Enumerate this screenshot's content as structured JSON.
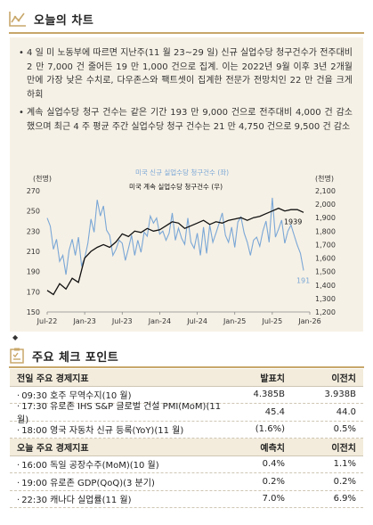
{
  "today_chart": {
    "title": "오늘의 차트",
    "bullets": [
      "4 일 미 노동부에 따르면 지난주(11 월 23~29 일) 신규 실업수당 청구건수가 전주대비 2 만 7,000 건 줄어든 19 만 1,000 건으로 집계. 이는 2022년 9월 이후 3년 2개월 만에 가장 낮은 수치로, 다우존스와 팩트셋이 집계한 전문가 전망치인 22 만 건을 크게 하회",
      "계속 실업수당 청구 건수는 같은 기간 193 만 9,000 건으로 전주대비 4,000 건 감소했으며 최근 4 주 평균 주간 실업수당 청구 건수는 21 만 4,750 건으로 9,500 건 감소"
    ]
  },
  "chart_data": {
    "type": "line",
    "left_unit": "(천명)",
    "right_unit": "(천명)",
    "x_ticks": [
      "Jul-22",
      "Jan-23",
      "Jul-23",
      "Jan-24",
      "Jul-24",
      "Jan-25",
      "Jul-25",
      "Jan-26"
    ],
    "left_ticks": [
      "270",
      "250",
      "230",
      "210",
      "190",
      "170",
      "150"
    ],
    "right_ticks": [
      "2,100",
      "2,000",
      "1,900",
      "1,800",
      "1,700",
      "1,600",
      "1,500",
      "1,400",
      "1,300",
      "1,200"
    ],
    "left_axis": {
      "min": 150,
      "max": 270
    },
    "right_axis": {
      "min": 1200,
      "max": 2100
    },
    "x_range": [
      0,
      42
    ],
    "series": [
      {
        "name": "미국 신규 실업수당 청구건수 (좌)",
        "axis": "left",
        "color": "#7aa7d6",
        "x": [
          0,
          0.5,
          1,
          1.5,
          2,
          2.5,
          3,
          3.5,
          4,
          4.5,
          5,
          5.5,
          6,
          6.5,
          7,
          7.5,
          8,
          8.5,
          9,
          9.5,
          10,
          10.5,
          11,
          11.5,
          12,
          12.5,
          13,
          13.5,
          14,
          14.5,
          15,
          15.5,
          16,
          16.5,
          17,
          17.5,
          18,
          18.5,
          19,
          19.5,
          20,
          20.5,
          21,
          21.5,
          22,
          22.5,
          23,
          23.5,
          24,
          24.5,
          25,
          25.5,
          26,
          26.5,
          27,
          27.5,
          28,
          28.5,
          29,
          29.5,
          30,
          30.5,
          31,
          31.5,
          32,
          32.5,
          33,
          33.5,
          34,
          34.5,
          35,
          35.5,
          36,
          36.5,
          37,
          37.5,
          38,
          38.5,
          39,
          39.5,
          40,
          40.5,
          41
        ],
        "values": [
          243,
          235,
          212,
          222,
          200,
          206,
          187,
          211,
          222,
          206,
          224,
          196,
          203,
          218,
          242,
          229,
          261,
          245,
          255,
          231,
          226,
          206,
          212,
          221,
          218,
          201,
          213,
          226,
          206,
          221,
          209,
          229,
          225,
          245,
          238,
          243,
          227,
          230,
          221,
          228,
          248,
          221,
          233,
          223,
          217,
          243,
          219,
          213,
          228,
          206,
          234,
          208,
          236,
          219,
          228,
          238,
          248,
          226,
          219,
          234,
          214,
          239,
          244,
          228,
          219,
          206,
          221,
          224,
          215,
          230,
          240,
          219,
          263,
          224,
          232,
          241,
          218,
          230,
          236,
          226,
          216,
          208,
          191
        ]
      },
      {
        "name": "미국 계속 실업수당 청구건수 (우)",
        "axis": "right",
        "color": "#111111",
        "x": [
          0,
          1,
          2,
          3,
          4,
          5,
          6,
          7,
          8,
          9,
          10,
          11,
          12,
          13,
          14,
          15,
          16,
          17,
          18,
          19,
          20,
          21,
          22,
          23,
          24,
          25,
          26,
          27,
          28,
          29,
          30,
          31,
          32,
          33,
          34,
          35,
          36,
          37,
          38,
          39,
          40,
          41
        ],
        "values": [
          1360,
          1330,
          1410,
          1370,
          1450,
          1420,
          1600,
          1650,
          1680,
          1700,
          1680,
          1720,
          1780,
          1760,
          1800,
          1790,
          1820,
          1800,
          1810,
          1840,
          1870,
          1860,
          1820,
          1840,
          1860,
          1880,
          1850,
          1870,
          1860,
          1880,
          1890,
          1900,
          1880,
          1900,
          1910,
          1930,
          1950,
          1970,
          1950,
          1960,
          1960,
          1939
        ]
      }
    ],
    "end_labels": {
      "left": "191",
      "right": "1939"
    }
  },
  "check_points": {
    "title": "주요 체크 포인트",
    "prev_header": {
      "label": "전일 주요 경제지표",
      "col2": "발표치",
      "col3": "이전치"
    },
    "prev_rows": [
      {
        "label": "09:30 호주 무역수지(10 월)",
        "v": "4.385B",
        "prev": "3.938B"
      },
      {
        "label": "17:30 유로존 IHS S&P 글로벌 건설 PMI(MoM)(11 월)",
        "v": "45.4",
        "prev": "44.0"
      },
      {
        "label": "18:00 영국 자동차 신규 등록(YoY)(11 월)",
        "v": "(1.6%)",
        "prev": "0.5%"
      }
    ],
    "today_header": {
      "label": "오늘 주요 경제지표",
      "col2": "예측치",
      "col3": "이전치"
    },
    "today_rows": [
      {
        "label": "16:00 독일 공장수주(MoM)(10 월)",
        "v": "0.4%",
        "prev": "1.1%"
      },
      {
        "label": "19:00 유로존 GDP(QoQ)(3 분기)",
        "v": "0.2%",
        "prev": "0.2%"
      },
      {
        "label": "22:30 캐나다 실업률(11 월)",
        "v": "7.0%",
        "prev": "6.9%"
      }
    ]
  },
  "icons": {
    "chart": "line-chart-icon",
    "checklist": "checklist-icon"
  },
  "colors": {
    "accent": "#c8a76a",
    "box_bg": "#f6f1e6",
    "header_bg": "#f3ecdc"
  }
}
